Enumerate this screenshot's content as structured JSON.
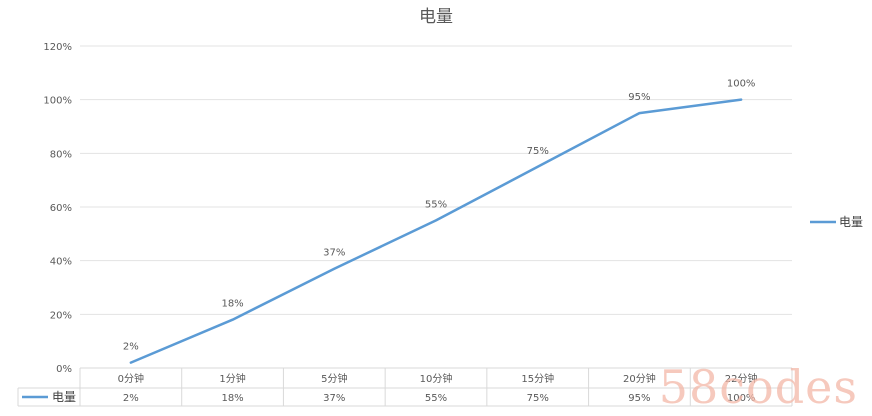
{
  "chart_data": {
    "type": "line",
    "title": "电量",
    "categories": [
      "0分钟",
      "1分钟",
      "5分钟",
      "10分钟",
      "15分钟",
      "20分钟",
      "22分钟"
    ],
    "series": [
      {
        "name": "电量",
        "values": [
          2,
          18,
          37,
          55,
          75,
          95,
          100
        ],
        "data_labels": [
          "2%",
          "18%",
          "37%",
          "55%",
          "75%",
          "95%",
          "100%"
        ],
        "color": "#5b9bd5"
      }
    ],
    "y_ticks": [
      "0%",
      "20%",
      "40%",
      "60%",
      "80%",
      "100%",
      "120%"
    ],
    "ylim": [
      0,
      120
    ],
    "grid": true,
    "legend": "right",
    "data_table": true
  },
  "watermark": "58codes"
}
